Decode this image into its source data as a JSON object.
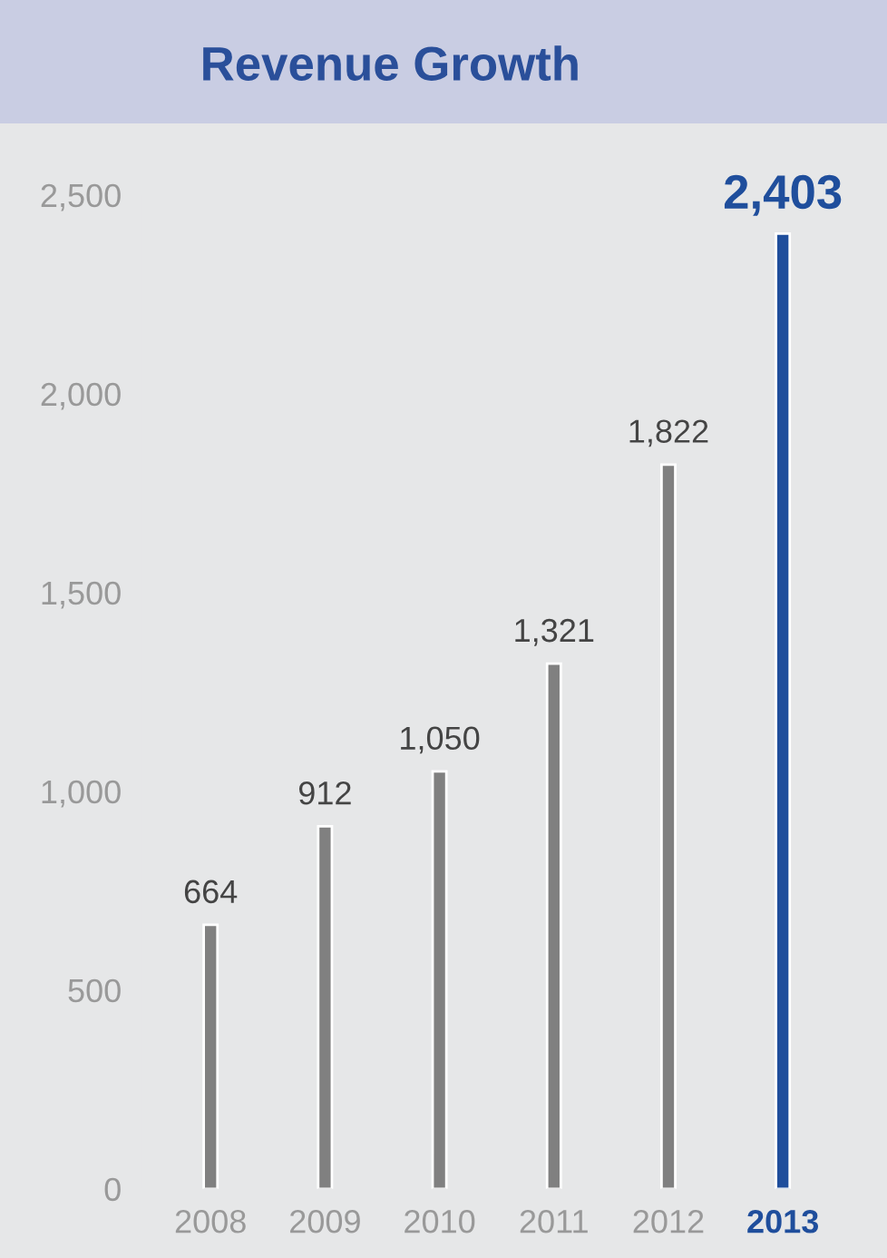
{
  "chart_data": {
    "type": "bar",
    "title": "Revenue Growth",
    "categories": [
      "2008",
      "2009",
      "2010",
      "2011",
      "2012",
      "2013"
    ],
    "values": [
      664,
      912,
      1050,
      1321,
      1822,
      2403
    ],
    "colors": [
      "#808080",
      "#808080",
      "#808080",
      "#808080",
      "#808080",
      "#1f4e9c"
    ],
    "ylim": [
      0,
      2500
    ],
    "yticks": [
      0,
      {
        "value": 500,
        "label": "500"
      },
      {
        "value": 1000,
        "label": "1,000"
      },
      {
        "value": 1500,
        "label": "1,500"
      },
      {
        "value": 2000,
        "label": "2,000"
      },
      {
        "value": 2500,
        "label": "2,500"
      }
    ],
    "value_labels": [
      "664",
      "912",
      "1,050",
      "1,321",
      "1,822",
      "2,403"
    ],
    "grid": false,
    "legend": false
  }
}
